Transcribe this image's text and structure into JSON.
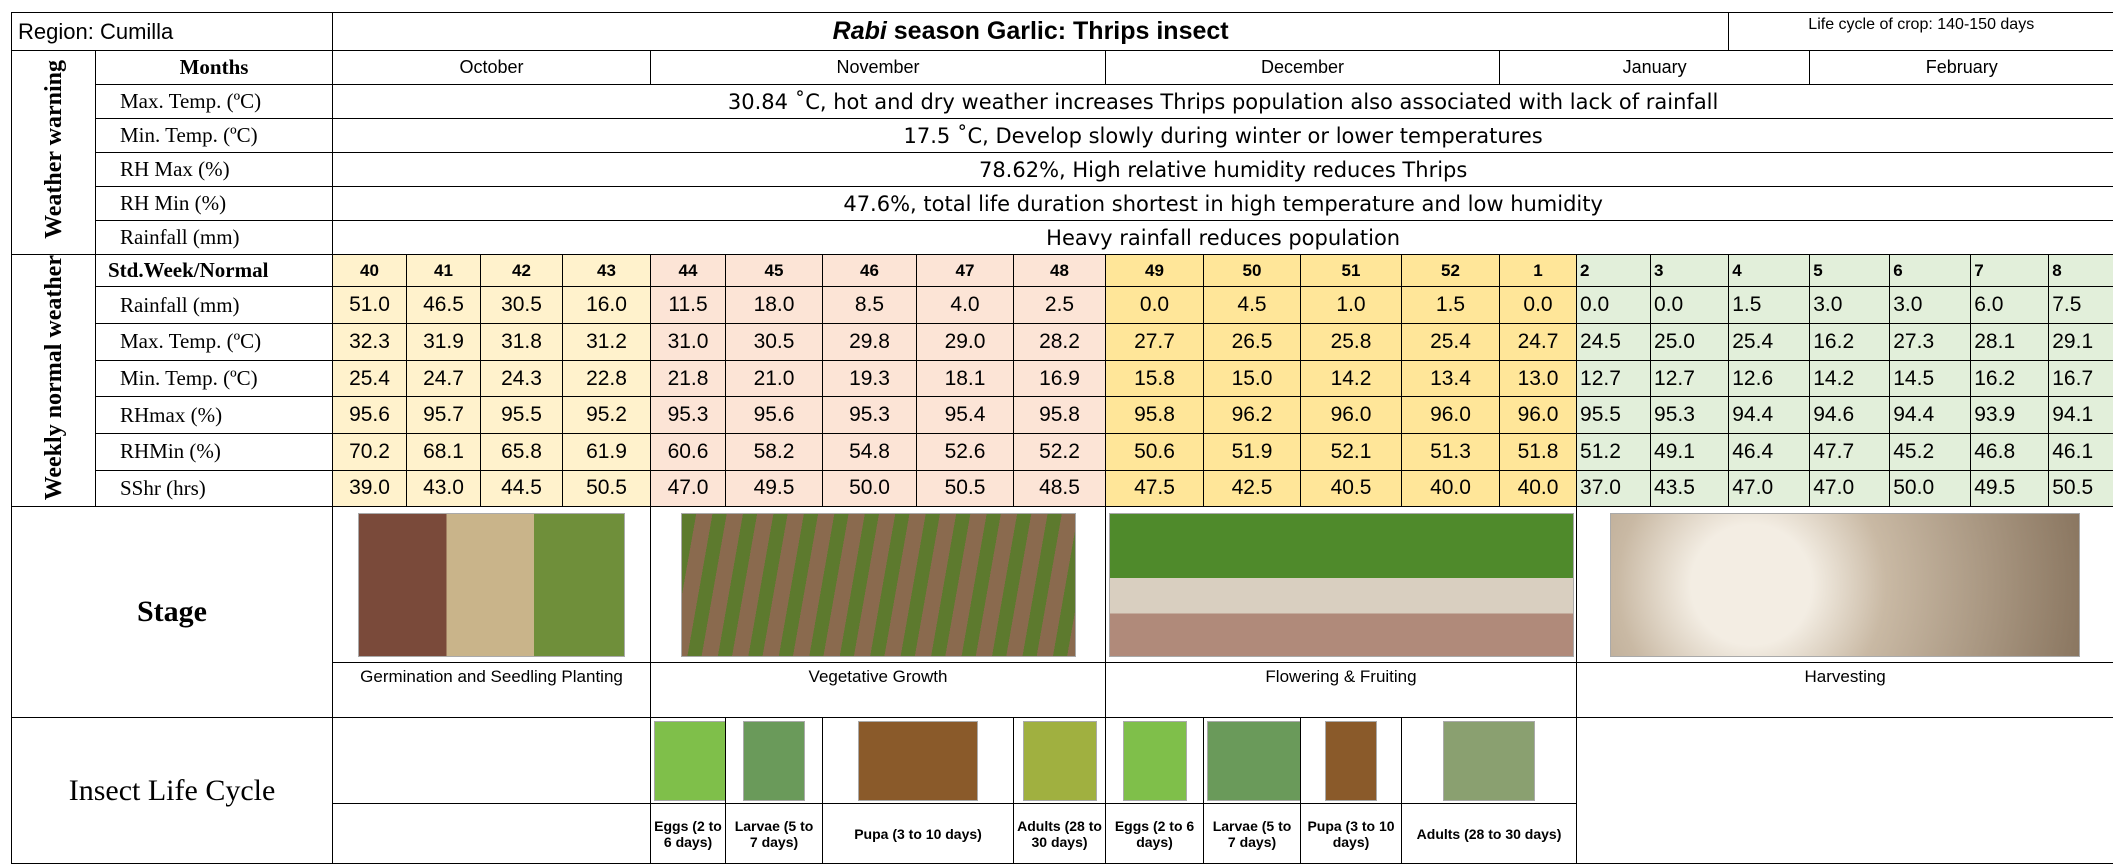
{
  "header": {
    "region": "Region: Cumilla",
    "title_em": "Rabi",
    "title_rest": " season Garlic: Thrips insect",
    "life_cycle": "Life cycle of crop: 140-150 days"
  },
  "months": {
    "label": "Months",
    "names": [
      "October",
      "November",
      "December",
      "January",
      "February"
    ]
  },
  "weather_warning": {
    "label": "Weather warning",
    "rows": [
      {
        "name": "Max. Temp. (ºC)",
        "text": "30.84 ˚C, hot and dry weather increases Thrips population also associated with lack of rainfall"
      },
      {
        "name": "Min. Temp. (ºC)",
        "text": "17.5 ˚C, Develop slowly during winter or lower temperatures"
      },
      {
        "name": "RH Max (%)",
        "text": "78.62%, High relative humidity reduces Thrips"
      },
      {
        "name": "RH Min (%)",
        "text": "47.6%, total life duration shortest in high temperature and low humidity"
      },
      {
        "name": "Rainfall (mm)",
        "text": "Heavy rainfall reduces population"
      }
    ]
  },
  "weekly": {
    "label": "Weekly normal weather",
    "header_label": "Std.Week/Normal",
    "weeks": [
      40,
      41,
      42,
      43,
      44,
      45,
      46,
      47,
      48,
      49,
      50,
      51,
      52,
      1,
      2,
      3,
      4,
      5,
      6,
      7,
      8
    ],
    "week_colors": [
      "#fff2cc",
      "#fff2cc",
      "#fff2cc",
      "#fff2cc",
      "#fce4d6",
      "#fce4d6",
      "#fce4d6",
      "#fce4d6",
      "#fce4d6",
      "#ffe699",
      "#ffe699",
      "#ffe699",
      "#ffe699",
      "#ffe699",
      "#e2efda",
      "#e2efda",
      "#e2efda",
      "#e2efda",
      "#e2efda",
      "#e2efda",
      "#e2efda"
    ],
    "rows": [
      {
        "name": "Rainfall (mm)",
        "values": [
          "51.0",
          "46.5",
          "30.5",
          "16.0",
          "11.5",
          "18.0",
          "8.5",
          "4.0",
          "2.5",
          "0.0",
          "4.5",
          "1.0",
          "1.5",
          "0.0",
          "0.0",
          "0.0",
          "1.5",
          "3.0",
          "3.0",
          "6.0",
          "7.5"
        ]
      },
      {
        "name": "Max. Temp. (ºC)",
        "values": [
          "32.3",
          "31.9",
          "31.8",
          "31.2",
          "31.0",
          "30.5",
          "29.8",
          "29.0",
          "28.2",
          "27.7",
          "26.5",
          "25.8",
          "25.4",
          "24.7",
          "24.5",
          "25.0",
          "25.4",
          "16.2",
          "27.3",
          "28.1",
          "29.1"
        ]
      },
      {
        "name": "Min. Temp. (ºC)",
        "values": [
          "25.4",
          "24.7",
          "24.3",
          "22.8",
          "21.8",
          "21.0",
          "19.3",
          "18.1",
          "16.9",
          "15.8",
          "15.0",
          "14.2",
          "13.4",
          "13.0",
          "12.7",
          "12.7",
          "12.6",
          "14.2",
          "14.5",
          "16.2",
          "16.7"
        ]
      },
      {
        "name": "RHmax (%)",
        "values": [
          "95.6",
          "95.7",
          "95.5",
          "95.2",
          "95.3",
          "95.6",
          "95.3",
          "95.4",
          "95.8",
          "95.8",
          "96.2",
          "96.0",
          "96.0",
          "96.0",
          "95.5",
          "95.3",
          "94.4",
          "94.6",
          "94.4",
          "93.9",
          "94.1"
        ]
      },
      {
        "name": "RHMin (%)",
        "values": [
          "70.2",
          "68.1",
          "65.8",
          "61.9",
          "60.6",
          "58.2",
          "54.8",
          "52.6",
          "52.2",
          "50.6",
          "51.9",
          "52.1",
          "51.3",
          "51.8",
          "51.2",
          "49.1",
          "46.4",
          "47.7",
          "45.2",
          "46.8",
          "46.1"
        ]
      },
      {
        "name": "SShr (hrs)",
        "values": [
          "39.0",
          "43.0",
          "44.5",
          "50.5",
          "47.0",
          "49.5",
          "50.0",
          "50.5",
          "48.5",
          "47.5",
          "42.5",
          "40.5",
          "40.0",
          "40.0",
          "37.0",
          "43.5",
          "47.0",
          "47.0",
          "50.0",
          "49.5",
          "50.5"
        ]
      }
    ]
  },
  "stage": {
    "label": "Stage",
    "names": [
      "Germination and Seedling Planting",
      "Vegetative Growth",
      "Flowering & Fruiting",
      "Harvesting"
    ]
  },
  "insect": {
    "label": "Insect Life Cycle",
    "stages": [
      "Eggs (2 to 6 days)",
      "Larvae (5 to 7 days)",
      "Pupa (3 to 10 days)",
      "Adults (28 to 30 days)",
      "Eggs (2 to 6 days)",
      "Larvae (5 to 7 days)",
      "Pupa (3 to 10 days)",
      "Adults (28 to 30 days)"
    ]
  }
}
